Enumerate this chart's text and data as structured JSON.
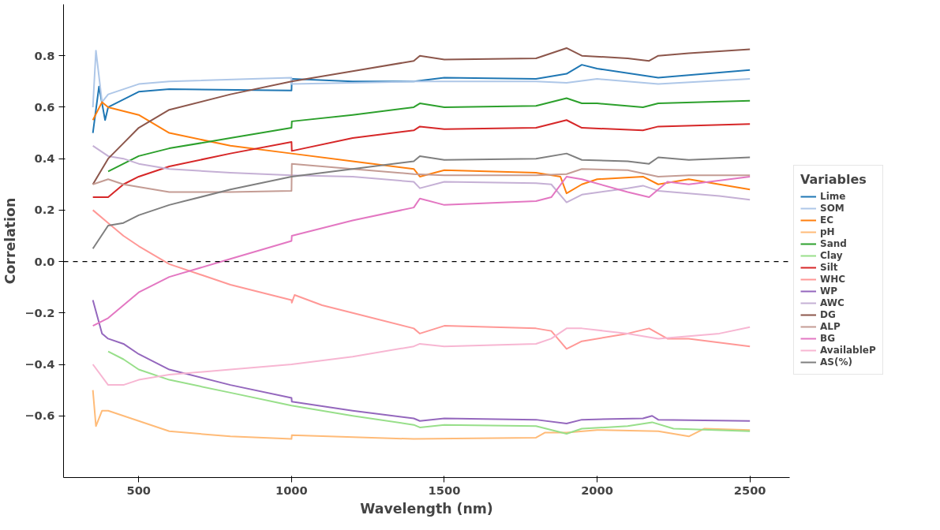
{
  "chart_data": {
    "type": "line",
    "xlabel": "Wavelength (nm)",
    "ylabel": "Correlation",
    "legend_title": "Variables",
    "legend": "right",
    "grid": false,
    "line_style": "solid",
    "xlim": [
      254,
      2630
    ],
    "ylim": [
      -0.84,
      1.0
    ],
    "xticks": [
      500,
      1000,
      1500,
      2000,
      2500
    ],
    "yticks": [
      {
        "value": -0.6,
        "label": "−0.6"
      },
      {
        "value": -0.4,
        "label": "−0.4"
      },
      {
        "value": -0.2,
        "label": "−0.2"
      },
      {
        "value": 0,
        "label": "0.0"
      },
      0.2,
      0.4,
      0.6,
      0.8
    ],
    "ref_lines": [
      {
        "axis": "y",
        "value": 0,
        "label": null,
        "color": "#000000",
        "line_style": "dashed"
      }
    ],
    "series": [
      {
        "name": "Lime",
        "color": "#1f77b4",
        "x": [
          350,
          370,
          390,
          400,
          450,
          500,
          600,
          1000,
          1001,
          1200,
          1400,
          1500,
          1800,
          1900,
          1950,
          2000,
          2200,
          2300,
          2500
        ],
        "values": [
          0.5,
          0.68,
          0.55,
          0.6,
          0.63,
          0.66,
          0.67,
          0.665,
          0.71,
          0.7,
          0.7,
          0.715,
          0.71,
          0.73,
          0.765,
          0.75,
          0.715,
          0.725,
          0.745
        ]
      },
      {
        "name": "SOM",
        "color": "#aec7e8",
        "x": [
          350,
          360,
          380,
          400,
          450,
          500,
          600,
          1000,
          1001,
          1400,
          1800,
          1900,
          2000,
          2200,
          2500
        ],
        "values": [
          0.6,
          0.82,
          0.62,
          0.65,
          0.67,
          0.69,
          0.7,
          0.715,
          0.69,
          0.7,
          0.7,
          0.695,
          0.71,
          0.69,
          0.71
        ]
      },
      {
        "name": "EC",
        "color": "#ff7f0e",
        "x": [
          350,
          380,
          400,
          500,
          600,
          800,
          1000,
          1200,
          1400,
          1420,
          1500,
          1800,
          1880,
          1900,
          1950,
          2000,
          2150,
          2200,
          2300,
          2400,
          2500
        ],
        "values": [
          0.55,
          0.62,
          0.6,
          0.57,
          0.5,
          0.45,
          0.42,
          0.39,
          0.36,
          0.33,
          0.355,
          0.345,
          0.33,
          0.265,
          0.3,
          0.32,
          0.33,
          0.3,
          0.32,
          0.3,
          0.28
        ]
      },
      {
        "name": "pH",
        "color": "#ffbb78",
        "x": [
          350,
          360,
          380,
          400,
          500,
          600,
          800,
          1000,
          1001,
          1400,
          1800,
          1830,
          1900,
          2000,
          2200,
          2300,
          2350,
          2500
        ],
        "values": [
          -0.5,
          -0.64,
          -0.58,
          -0.58,
          -0.62,
          -0.66,
          -0.68,
          -0.69,
          -0.675,
          -0.69,
          -0.685,
          -0.665,
          -0.665,
          -0.655,
          -0.66,
          -0.68,
          -0.65,
          -0.655
        ]
      },
      {
        "name": "Sand",
        "color": "#2ca02c",
        "x": [
          400,
          450,
          500,
          600,
          800,
          1000,
          1001,
          1200,
          1400,
          1420,
          1500,
          1800,
          1900,
          1950,
          2000,
          2150,
          2200,
          2500
        ],
        "values": [
          0.35,
          0.38,
          0.41,
          0.44,
          0.48,
          0.52,
          0.545,
          0.57,
          0.6,
          0.615,
          0.6,
          0.605,
          0.635,
          0.615,
          0.615,
          0.6,
          0.615,
          0.625
        ]
      },
      {
        "name": "Clay",
        "color": "#98df8a",
        "x": [
          400,
          450,
          500,
          600,
          800,
          1000,
          1200,
          1400,
          1420,
          1500,
          1800,
          1900,
          1950,
          2100,
          2180,
          2250,
          2500
        ],
        "values": [
          -0.35,
          -0.38,
          -0.42,
          -0.46,
          -0.51,
          -0.56,
          -0.6,
          -0.635,
          -0.645,
          -0.635,
          -0.64,
          -0.67,
          -0.65,
          -0.64,
          -0.625,
          -0.65,
          -0.66
        ]
      },
      {
        "name": "Silt",
        "color": "#d62728",
        "x": [
          350,
          400,
          450,
          500,
          600,
          800,
          1000,
          1001,
          1200,
          1400,
          1420,
          1500,
          1800,
          1900,
          1950,
          2150,
          2200,
          2500
        ],
        "values": [
          0.25,
          0.25,
          0.3,
          0.33,
          0.37,
          0.42,
          0.465,
          0.43,
          0.48,
          0.51,
          0.525,
          0.515,
          0.52,
          0.55,
          0.52,
          0.51,
          0.525,
          0.535
        ]
      },
      {
        "name": "WHC",
        "color": "#ff9896",
        "x": [
          350,
          400,
          450,
          500,
          600,
          800,
          1000,
          1001,
          1010,
          1100,
          1200,
          1400,
          1420,
          1500,
          1800,
          1850,
          1900,
          1950,
          2100,
          2170,
          2230,
          2300,
          2500
        ],
        "values": [
          0.2,
          0.15,
          0.1,
          0.06,
          -0.01,
          -0.09,
          -0.15,
          -0.16,
          -0.13,
          -0.17,
          -0.2,
          -0.26,
          -0.28,
          -0.25,
          -0.26,
          -0.27,
          -0.34,
          -0.31,
          -0.28,
          -0.26,
          -0.3,
          -0.3,
          -0.33
        ]
      },
      {
        "name": "WP",
        "color": "#9467bd",
        "x": [
          350,
          380,
          400,
          450,
          500,
          600,
          800,
          1000,
          1001,
          1200,
          1400,
          1420,
          1500,
          1800,
          1900,
          1950,
          2150,
          2180,
          2200,
          2500
        ],
        "values": [
          -0.15,
          -0.28,
          -0.3,
          -0.32,
          -0.36,
          -0.42,
          -0.48,
          -0.53,
          -0.545,
          -0.58,
          -0.61,
          -0.62,
          -0.61,
          -0.615,
          -0.63,
          -0.615,
          -0.61,
          -0.6,
          -0.615,
          -0.62
        ]
      },
      {
        "name": "AWC",
        "color": "#c5b0d5",
        "x": [
          350,
          400,
          450,
          500,
          600,
          800,
          1000,
          1200,
          1400,
          1420,
          1500,
          1800,
          1850,
          1900,
          1950,
          2100,
          2150,
          2200,
          2300,
          2400,
          2500
        ],
        "values": [
          0.45,
          0.41,
          0.4,
          0.38,
          0.36,
          0.345,
          0.335,
          0.33,
          0.31,
          0.285,
          0.31,
          0.305,
          0.3,
          0.23,
          0.26,
          0.285,
          0.295,
          0.275,
          0.265,
          0.255,
          0.24
        ]
      },
      {
        "name": "DG",
        "color": "#8c564b",
        "x": [
          350,
          400,
          450,
          500,
          600,
          800,
          1000,
          1200,
          1400,
          1420,
          1500,
          1800,
          1900,
          1950,
          2100,
          2170,
          2200,
          2300,
          2500
        ],
        "values": [
          0.3,
          0.4,
          0.46,
          0.52,
          0.59,
          0.65,
          0.7,
          0.74,
          0.78,
          0.8,
          0.785,
          0.79,
          0.83,
          0.8,
          0.79,
          0.78,
          0.8,
          0.81,
          0.825
        ]
      },
      {
        "name": "ALP",
        "color": "#c49c94",
        "x": [
          350,
          400,
          450,
          500,
          600,
          800,
          1000,
          1001,
          1200,
          1400,
          1500,
          1800,
          1900,
          1950,
          2100,
          2200,
          2300,
          2500
        ],
        "values": [
          0.3,
          0.32,
          0.3,
          0.29,
          0.27,
          0.27,
          0.275,
          0.38,
          0.36,
          0.34,
          0.335,
          0.335,
          0.34,
          0.36,
          0.355,
          0.33,
          0.335,
          0.335
        ]
      },
      {
        "name": "BG",
        "color": "#e377c2",
        "x": [
          350,
          400,
          450,
          500,
          600,
          800,
          1000,
          1001,
          1200,
          1400,
          1420,
          1500,
          1800,
          1850,
          1900,
          1950,
          2100,
          2170,
          2230,
          2300,
          2500
        ],
        "values": [
          -0.25,
          -0.22,
          -0.17,
          -0.12,
          -0.06,
          0.01,
          0.08,
          0.1,
          0.16,
          0.21,
          0.245,
          0.22,
          0.235,
          0.25,
          0.33,
          0.32,
          0.27,
          0.25,
          0.31,
          0.3,
          0.33
        ]
      },
      {
        "name": "AvailableP",
        "color": "#f7b6d2",
        "x": [
          350,
          400,
          450,
          500,
          600,
          800,
          1000,
          1200,
          1400,
          1420,
          1500,
          1800,
          1850,
          1900,
          1950,
          2100,
          2200,
          2300,
          2400,
          2500
        ],
        "values": [
          -0.4,
          -0.48,
          -0.48,
          -0.46,
          -0.44,
          -0.42,
          -0.4,
          -0.37,
          -0.33,
          -0.32,
          -0.33,
          -0.32,
          -0.3,
          -0.26,
          -0.26,
          -0.28,
          -0.3,
          -0.29,
          -0.28,
          -0.255
        ]
      },
      {
        "name": "AS(%)",
        "color": "#7f7f7f",
        "x": [
          350,
          400,
          450,
          500,
          600,
          800,
          1000,
          1200,
          1400,
          1420,
          1500,
          1800,
          1900,
          1950,
          2100,
          2170,
          2200,
          2300,
          2500
        ],
        "values": [
          0.05,
          0.14,
          0.15,
          0.18,
          0.22,
          0.28,
          0.33,
          0.36,
          0.39,
          0.41,
          0.395,
          0.4,
          0.42,
          0.395,
          0.39,
          0.38,
          0.405,
          0.395,
          0.405
        ]
      }
    ]
  }
}
